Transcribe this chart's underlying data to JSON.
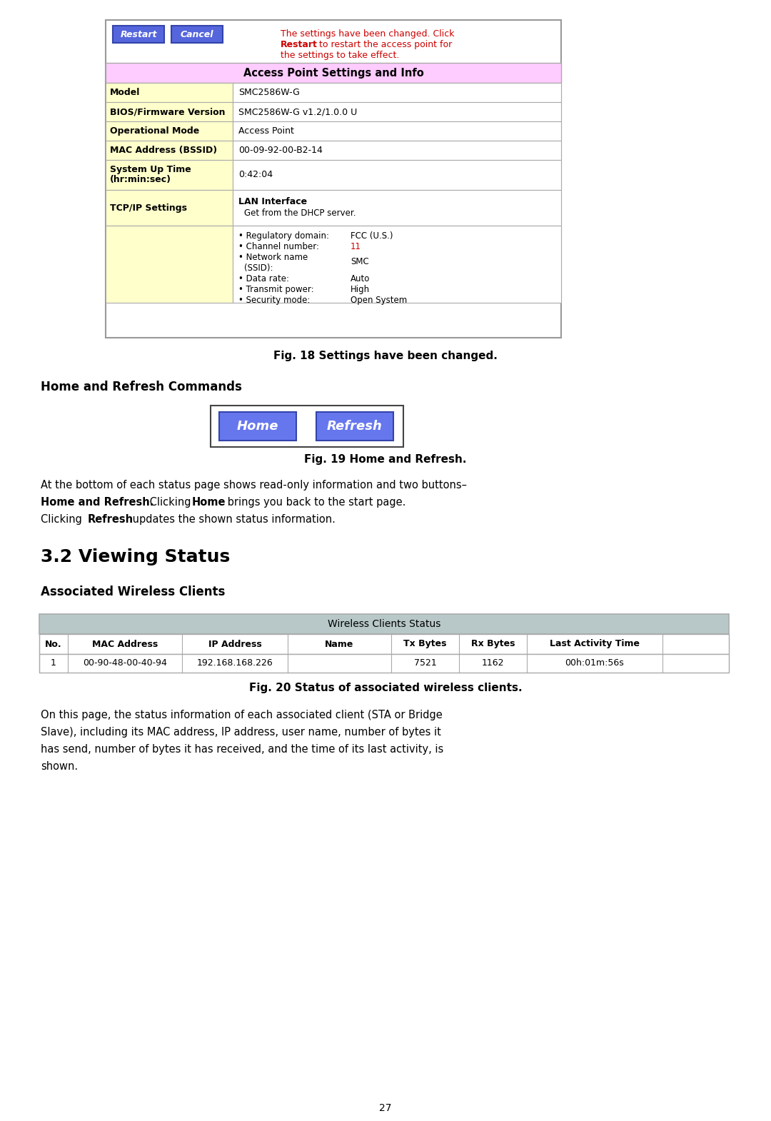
{
  "bg_color": "#ffffff",
  "fig18_caption": "Fig. 18 Settings have been changed.",
  "fig19_caption": "Fig. 19 Home and Refresh.",
  "fig20_caption": "Fig. 20 Status of associated wireless clients.",
  "section_heading": "3.2 Viewing Status",
  "subsection1": "Home and Refresh Commands",
  "subsection2": "Associated Wireless Clients",
  "notice_color": "#cc0000",
  "notice_text_line1": "The settings have been changed. Click",
  "notice_text_line2a": "Restart",
  "notice_text_line2b": " to restart the access point for",
  "notice_text_line3": "the settings to take effect.",
  "restart_btn_color": "#5566dd",
  "cancel_btn_color": "#5566dd",
  "home_btn_color": "#6677ee",
  "refresh_btn_color": "#6677ee",
  "header_pink": "#ffccff",
  "row_yellow": "#ffffcc",
  "row_white": "#ffffff",
  "border_color": "#aaaaaa",
  "table_header_gray": "#b8c8c8",
  "channel_color": "#cc0000",
  "page_number": "27",
  "para2_lines": [
    "On this page, the status information of each associated client (STA or Bridge",
    "Slave), including its MAC address, IP address, user name, number of bytes it",
    "has send, number of bytes it has received, and the time of its last activity, is",
    "shown."
  ]
}
